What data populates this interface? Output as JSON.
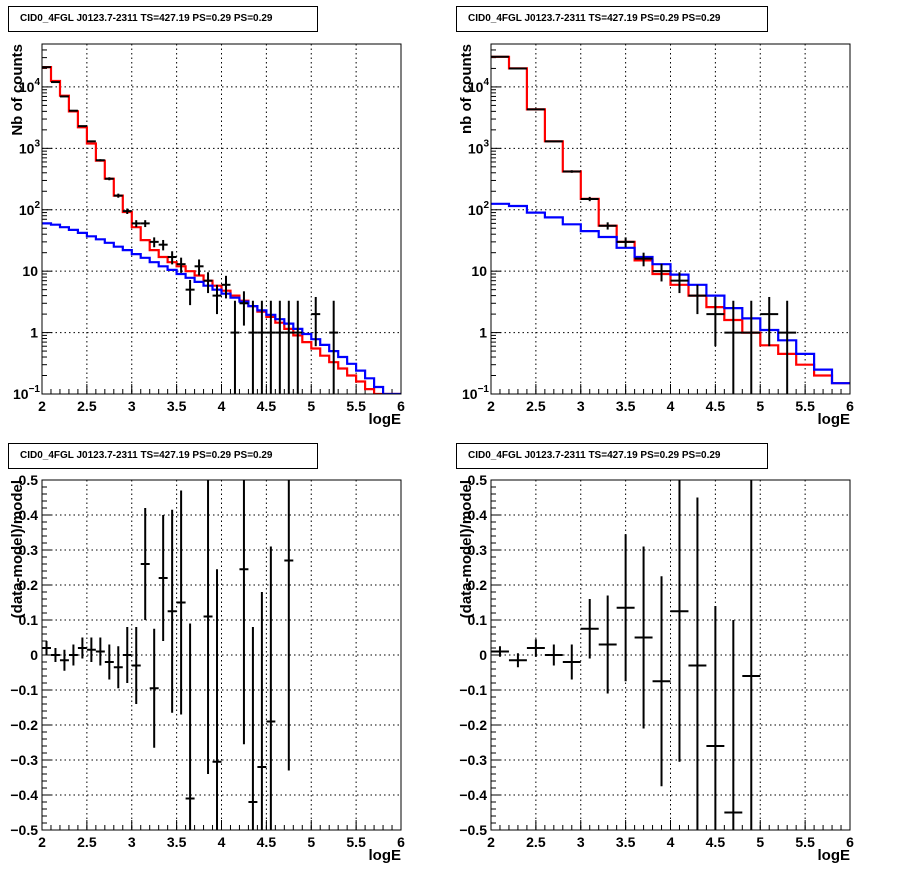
{
  "chart_data": [
    {
      "type": "line",
      "title": "CID0_4FGL J0123.7-2311 TS=427.19 PS=0.29 PS=0.29",
      "xlabel": "logE",
      "ylabel": "Nb of counts",
      "xlim": [
        2,
        6
      ],
      "ylim": [
        0.1,
        50000
      ],
      "log_y": true,
      "grid": true,
      "x_ticks": [
        "2",
        "2.5",
        "3",
        "3.5",
        "4",
        "4.5",
        "5",
        "5.5",
        "6"
      ],
      "y_ticks": [
        {
          "v": 0.1,
          "base": "10",
          "exp": "−1"
        },
        {
          "v": 1,
          "base": "1",
          "exp": ""
        },
        {
          "v": 10,
          "base": "10",
          "exp": ""
        },
        {
          "v": 100,
          "base": "10",
          "exp": "2"
        },
        {
          "v": 1000,
          "base": "10",
          "exp": "3"
        },
        {
          "v": 10000,
          "base": "10",
          "exp": "4"
        }
      ],
      "series": [
        {
          "color": "#ff0000",
          "style": "step",
          "bin_width": 0.1,
          "x": [
            2.0,
            2.1,
            2.2,
            2.3,
            2.4,
            2.5,
            2.6,
            2.7,
            2.8,
            2.9,
            3.0,
            3.1,
            3.2,
            3.3,
            3.4,
            3.5,
            3.6,
            3.7,
            3.8,
            3.9,
            4.0,
            4.1,
            4.2,
            4.3,
            4.4,
            4.5,
            4.6,
            4.7,
            4.8,
            4.9,
            5.0,
            5.1,
            5.2,
            5.3,
            5.4,
            5.5,
            5.6,
            5.7,
            5.8,
            5.9
          ],
          "values": [
            21000,
            12500,
            7200,
            4000,
            2200,
            1200,
            630,
            320,
            170,
            92,
            52,
            32,
            22,
            17,
            14,
            12,
            10,
            8.5,
            7,
            5.8,
            4.8,
            4,
            3.3,
            2.7,
            2.2,
            1.8,
            1.45,
            1.15,
            0.9,
            0.7,
            0.55,
            0.42,
            0.33,
            0.26,
            0.2,
            0.16,
            0.12,
            0.1,
            0.1,
            0.1
          ]
        },
        {
          "color": "#0000ff",
          "style": "step",
          "bin_width": 0.1,
          "x": [
            2.0,
            2.1,
            2.2,
            2.3,
            2.4,
            2.5,
            2.6,
            2.7,
            2.8,
            2.9,
            3.0,
            3.1,
            3.2,
            3.3,
            3.4,
            3.5,
            3.6,
            3.7,
            3.8,
            3.9,
            4.0,
            4.1,
            4.2,
            4.3,
            4.4,
            4.5,
            4.6,
            4.7,
            4.8,
            4.9,
            5.0,
            5.1,
            5.2,
            5.3,
            5.4,
            5.5,
            5.6,
            5.7,
            5.8,
            5.9
          ],
          "values": [
            60,
            57,
            52,
            47,
            42,
            37,
            33,
            29,
            25,
            22,
            19,
            16.5,
            14,
            12,
            10.5,
            9,
            7.8,
            6.7,
            5.8,
            5,
            4.3,
            3.7,
            3.2,
            2.7,
            2.3,
            1.95,
            1.65,
            1.4,
            1.15,
            0.95,
            0.78,
            0.63,
            0.5,
            0.4,
            0.31,
            0.24,
            0.18,
            0.13,
            0.1,
            0.1
          ]
        },
        {
          "color": "#000000",
          "style": "errorbar",
          "x_err": 0.05,
          "x": [
            2.05,
            2.15,
            2.25,
            2.35,
            2.45,
            2.55,
            2.65,
            2.75,
            2.85,
            2.95,
            3.05,
            3.15,
            3.25,
            3.35,
            3.45,
            3.55,
            3.65,
            3.75,
            3.85,
            3.95,
            4.05,
            4.15,
            4.25,
            4.35,
            4.45,
            4.55,
            4.65,
            4.75,
            4.85,
            5.05,
            5.25
          ],
          "values": [
            21000,
            12000,
            7000,
            4100,
            2300,
            1300,
            640,
            320,
            170,
            95,
            60,
            60,
            30,
            27,
            17,
            13,
            5,
            12,
            7,
            4,
            6,
            1,
            3,
            1,
            1,
            1,
            1,
            1,
            1,
            2,
            1
          ],
          "err_lo": [
            145,
            110,
            84,
            64,
            48,
            36,
            25,
            18,
            13,
            9.7,
            7.7,
            7.7,
            5.5,
            5.2,
            4.1,
            3.6,
            2.2,
            3.5,
            2.6,
            2,
            2.4,
            1,
            1.7,
            1,
            1,
            1,
            1,
            1,
            1,
            1.4,
            1
          ],
          "err_hi": [
            145,
            110,
            84,
            64,
            48,
            36,
            25,
            18,
            13,
            9.7,
            7.7,
            7.7,
            5.5,
            5.2,
            4.1,
            3.6,
            2.2,
            3.5,
            2.6,
            2,
            2.4,
            2.3,
            1.7,
            2.3,
            2.3,
            2.3,
            2.3,
            2.3,
            2.3,
            1.8,
            2.3
          ]
        }
      ]
    },
    {
      "type": "line",
      "title": "CID0_4FGL J0123.7-2311 TS=427.19 PS=0.29 PS=0.29",
      "xlabel": "logE",
      "ylabel": "nb of counts",
      "xlim": [
        2,
        6
      ],
      "ylim": [
        0.1,
        50000
      ],
      "log_y": true,
      "grid": true,
      "x_ticks": [
        "2",
        "2.5",
        "3",
        "3.5",
        "4",
        "4.5",
        "5",
        "5.5",
        "6"
      ],
      "y_ticks": [
        {
          "v": 0.1,
          "base": "10",
          "exp": "−1"
        },
        {
          "v": 1,
          "base": "1",
          "exp": ""
        },
        {
          "v": 10,
          "base": "10",
          "exp": ""
        },
        {
          "v": 100,
          "base": "10",
          "exp": "2"
        },
        {
          "v": 1000,
          "base": "10",
          "exp": "3"
        },
        {
          "v": 10000,
          "base": "10",
          "exp": "4"
        }
      ],
      "series": [
        {
          "color": "#ff0000",
          "style": "step",
          "bin_width": 0.2,
          "x": [
            2.0,
            2.2,
            2.4,
            2.6,
            2.8,
            3.0,
            3.2,
            3.4,
            3.6,
            3.8,
            4.0,
            4.2,
            4.4,
            4.6,
            4.8,
            5.0,
            5.2,
            5.4,
            5.6,
            5.8
          ],
          "values": [
            31000,
            20000,
            4300,
            1300,
            420,
            150,
            55,
            30,
            15,
            9,
            6,
            4,
            2.6,
            1.6,
            1,
            0.62,
            0.45,
            0.3,
            0.2,
            0.15
          ]
        },
        {
          "color": "#0000ff",
          "style": "step",
          "bin_width": 0.2,
          "x": [
            2.0,
            2.2,
            2.4,
            2.6,
            2.8,
            3.0,
            3.2,
            3.4,
            3.6,
            3.8,
            4.0,
            4.2,
            4.4,
            4.6,
            4.8,
            5.0,
            5.2,
            5.4,
            5.6,
            5.8
          ],
          "values": [
            125,
            115,
            90,
            75,
            58,
            45,
            36,
            24,
            17,
            13,
            8.8,
            6,
            4,
            2.5,
            1.7,
            1.1,
            0.75,
            0.45,
            0.25,
            0.15
          ]
        },
        {
          "color": "#000000",
          "style": "errorbar",
          "x_err": 0.1,
          "x": [
            2.1,
            2.3,
            2.5,
            2.7,
            2.9,
            3.1,
            3.3,
            3.5,
            3.7,
            3.9,
            4.1,
            4.3,
            4.5,
            4.7,
            4.9,
            5.1,
            5.3
          ],
          "values": [
            31000,
            20000,
            4300,
            1300,
            420,
            150,
            55,
            30,
            16,
            10,
            7,
            4,
            2,
            1,
            1,
            2,
            1
          ],
          "err_lo": [
            176,
            141,
            66,
            36,
            20,
            12,
            7.4,
            5.5,
            4,
            3.2,
            2.6,
            2,
            1.4,
            1,
            1,
            1.4,
            1
          ],
          "err_hi": [
            176,
            141,
            66,
            36,
            20,
            12,
            7.4,
            5.5,
            4,
            3.2,
            2.6,
            2,
            1.8,
            2.3,
            2.3,
            1.8,
            2.3
          ]
        }
      ]
    },
    {
      "type": "scatter",
      "title": "CID0_4FGL J0123.7-2311 TS=427.19 PS=0.29 PS=0.29",
      "xlabel": "logE",
      "ylabel": "(data-model)/model",
      "xlim": [
        2,
        6
      ],
      "ylim": [
        -0.5,
        0.5
      ],
      "grid": true,
      "x_ticks": [
        "2",
        "2.5",
        "3",
        "3.5",
        "4",
        "4.5",
        "5",
        "5.5",
        "6"
      ],
      "y_ticks": [
        "−0.5",
        "−0.4",
        "−0.3",
        "−0.2",
        "−0.1",
        "0",
        "0.1",
        "0.2",
        "0.3",
        "0.4",
        "0.5"
      ],
      "series": [
        {
          "color": "#000000",
          "style": "errorbar",
          "x_err": 0.05,
          "x": [
            2.05,
            2.15,
            2.25,
            2.35,
            2.45,
            2.55,
            2.65,
            2.75,
            2.85,
            2.95,
            3.05,
            3.15,
            3.25,
            3.35,
            3.45,
            3.55,
            3.65,
            3.85,
            3.95,
            4.25,
            4.35,
            4.45,
            4.55,
            4.75
          ],
          "values": [
            0.02,
            0.0,
            -0.015,
            0.0,
            0.02,
            0.015,
            0.01,
            -0.02,
            -0.035,
            0.0,
            -0.03,
            0.26,
            -0.095,
            0.22,
            0.125,
            0.15,
            -0.41,
            0.11,
            -0.305,
            0.245,
            -0.42,
            -0.32,
            -0.19,
            0.27
          ],
          "err": [
            0.02,
            0.02,
            0.03,
            0.03,
            0.03,
            0.035,
            0.04,
            0.05,
            0.06,
            0.08,
            0.11,
            0.16,
            0.17,
            0.18,
            0.29,
            0.32,
            0.5,
            0.45,
            0.55,
            0.5,
            0.5,
            0.5,
            0.5,
            0.6
          ]
        }
      ]
    },
    {
      "type": "scatter",
      "title": "CID0_4FGL J0123.7-2311 TS=427.19 PS=0.29 PS=0.29",
      "xlabel": "logE",
      "ylabel": "(data-model)/model",
      "xlim": [
        2,
        6
      ],
      "ylim": [
        -0.5,
        0.5
      ],
      "grid": true,
      "x_ticks": [
        "2",
        "2.5",
        "3",
        "3.5",
        "4",
        "4.5",
        "5",
        "5.5",
        "6"
      ],
      "y_ticks": [
        "−0.5",
        "−0.4",
        "−0.3",
        "−0.2",
        "−0.1",
        "0",
        "0.1",
        "0.2",
        "0.3",
        "0.4",
        "0.5"
      ],
      "series": [
        {
          "color": "#000000",
          "style": "errorbar",
          "x_err": 0.1,
          "x": [
            2.1,
            2.3,
            2.5,
            2.7,
            2.9,
            3.1,
            3.3,
            3.5,
            3.7,
            3.9,
            4.1,
            4.3,
            4.5,
            4.7,
            4.9
          ],
          "values": [
            0.01,
            -0.015,
            0.02,
            0.0,
            -0.02,
            0.075,
            0.03,
            0.135,
            0.05,
            -0.075,
            0.125,
            -0.03,
            -0.26,
            -0.45,
            -0.06
          ],
          "err": [
            0.015,
            0.02,
            0.025,
            0.03,
            0.05,
            0.085,
            0.14,
            0.21,
            0.26,
            0.3,
            0.43,
            0.48,
            0.4,
            0.55,
            0.6
          ]
        }
      ]
    }
  ]
}
